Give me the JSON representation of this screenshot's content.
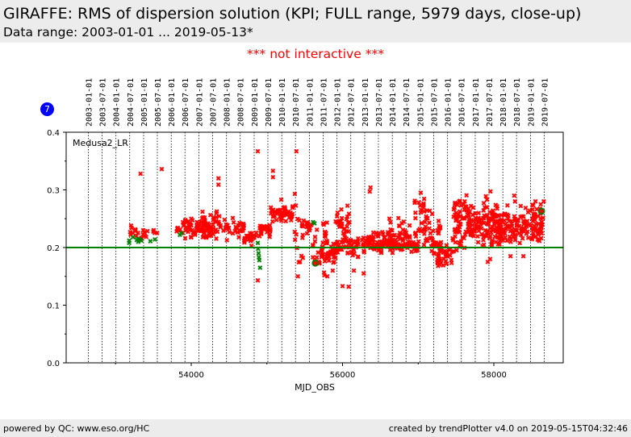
{
  "header": {
    "title": "GIRAFFE: RMS of dispersion solution (KPI; FULL range, 5979 days, close-up)",
    "subtitle": "Data range: 2003-01-01 ... 2019-05-13*"
  },
  "notice": "*** not interactive ***",
  "badge": "7",
  "footer": {
    "left": "powered by QC: www.eso.org/HC",
    "right": "created by trendPlotter v4.0 on 2019-05-15T04:32:46"
  },
  "chart_data": {
    "type": "scatter",
    "title": "GIRAFFE: RMS of dispersion solution (KPI; FULL range, 5979 days, close-up)",
    "xlabel": "MJD_OBS",
    "ylabel": "",
    "annotation": "Medusa2_LR",
    "xlim": [
      52347,
      58917
    ],
    "ylim": [
      0.0,
      0.4
    ],
    "x_ticks": [
      54000,
      56000,
      58000
    ],
    "x_tick_labels": [
      "54000",
      "56000",
      "58000"
    ],
    "x_minor_ticks": [
      53000,
      55000,
      57000
    ],
    "y_ticks": [
      0.0,
      0.1,
      0.2,
      0.3,
      0.4
    ],
    "y_tick_labels": [
      "0.0",
      "0.1",
      "0.2",
      "0.3",
      "0.4"
    ],
    "y_minor_ticks": [
      0.05,
      0.15,
      0.25,
      0.35
    ],
    "reference_line": {
      "y": 0.2,
      "color": "#008000"
    },
    "date_gridlines": [
      {
        "label": "2003-01-01",
        "mjd": 52640
      },
      {
        "label": "2003-07-01",
        "mjd": 52821
      },
      {
        "label": "2004-01-01",
        "mjd": 53005
      },
      {
        "label": "2004-07-01",
        "mjd": 53187
      },
      {
        "label": "2005-01-01",
        "mjd": 53371
      },
      {
        "label": "2005-07-01",
        "mjd": 53552
      },
      {
        "label": "2006-01-01",
        "mjd": 53736
      },
      {
        "label": "2006-07-01",
        "mjd": 53917
      },
      {
        "label": "2007-01-01",
        "mjd": 54101
      },
      {
        "label": "2007-07-01",
        "mjd": 54282
      },
      {
        "label": "2008-01-01",
        "mjd": 54466
      },
      {
        "label": "2008-07-01",
        "mjd": 54648
      },
      {
        "label": "2009-01-01",
        "mjd": 54832
      },
      {
        "label": "2009-07-01",
        "mjd": 55013
      },
      {
        "label": "2010-01-01",
        "mjd": 55197
      },
      {
        "label": "2010-07-01",
        "mjd": 55378
      },
      {
        "label": "2011-01-01",
        "mjd": 55562
      },
      {
        "label": "2011-07-01",
        "mjd": 55743
      },
      {
        "label": "2012-01-01",
        "mjd": 55927
      },
      {
        "label": "2012-07-01",
        "mjd": 56109
      },
      {
        "label": "2013-01-01",
        "mjd": 56293
      },
      {
        "label": "2013-07-01",
        "mjd": 56474
      },
      {
        "label": "2014-01-01",
        "mjd": 56658
      },
      {
        "label": "2014-07-01",
        "mjd": 56839
      },
      {
        "label": "2015-01-01",
        "mjd": 57023
      },
      {
        "label": "2015-07-01",
        "mjd": 57204
      },
      {
        "label": "2016-01-01",
        "mjd": 57388
      },
      {
        "label": "2016-07-01",
        "mjd": 57570
      },
      {
        "label": "2017-01-01",
        "mjd": 57754
      },
      {
        "label": "2017-07-01",
        "mjd": 57935
      },
      {
        "label": "2018-01-01",
        "mjd": 58119
      },
      {
        "label": "2018-07-01",
        "mjd": 58300
      },
      {
        "label": "2019-01-01",
        "mjd": 58484
      },
      {
        "label": "2019-07-01",
        "mjd": 58665
      }
    ],
    "series": [
      {
        "name": "outside_threshold",
        "color": "#ff0000",
        "marker": "x",
        "clusters": [
          {
            "x0": 53180,
            "x1": 53300,
            "ymean": 0.226,
            "yspread": 0.006,
            "n": 10
          },
          {
            "x0": 53300,
            "x1": 53450,
            "ymean": 0.224,
            "yspread": 0.006,
            "n": 8
          },
          {
            "x0": 53450,
            "x1": 53560,
            "ymean": 0.228,
            "yspread": 0.006,
            "n": 4
          },
          {
            "x0": 53800,
            "x1": 53880,
            "ymean": 0.228,
            "yspread": 0.004,
            "n": 6
          },
          {
            "x0": 53880,
            "x1": 54300,
            "ymean": 0.234,
            "yspread": 0.008,
            "n": 70
          },
          {
            "x0": 54050,
            "x1": 54400,
            "ymean": 0.24,
            "yspread": 0.012,
            "n": 40
          },
          {
            "x0": 54400,
            "x1": 54700,
            "ymean": 0.232,
            "yspread": 0.008,
            "n": 35
          },
          {
            "x0": 54700,
            "x1": 54880,
            "ymean": 0.218,
            "yspread": 0.006,
            "n": 25
          },
          {
            "x0": 54900,
            "x1": 55050,
            "ymean": 0.232,
            "yspread": 0.006,
            "n": 25
          },
          {
            "x0": 55050,
            "x1": 55350,
            "ymean": 0.258,
            "yspread": 0.007,
            "n": 50
          },
          {
            "x0": 55350,
            "x1": 55480,
            "ymean": 0.215,
            "yspread": 0.025,
            "n": 14
          },
          {
            "x0": 55450,
            "x1": 55600,
            "ymean": 0.24,
            "yspread": 0.006,
            "n": 14
          },
          {
            "x0": 55600,
            "x1": 55800,
            "ymean": 0.205,
            "yspread": 0.02,
            "n": 28
          },
          {
            "x0": 55700,
            "x1": 55950,
            "ymean": 0.192,
            "yspread": 0.008,
            "n": 40
          },
          {
            "x0": 55900,
            "x1": 56100,
            "ymean": 0.24,
            "yspread": 0.014,
            "n": 35
          },
          {
            "x0": 55950,
            "x1": 56300,
            "ymean": 0.205,
            "yspread": 0.01,
            "n": 45
          },
          {
            "x0": 56300,
            "x1": 56700,
            "ymean": 0.208,
            "yspread": 0.008,
            "n": 80
          },
          {
            "x0": 56600,
            "x1": 56900,
            "ymean": 0.22,
            "yspread": 0.012,
            "n": 45
          },
          {
            "x0": 56700,
            "x1": 57000,
            "ymean": 0.2,
            "yspread": 0.004,
            "n": 40
          },
          {
            "x0": 56950,
            "x1": 57100,
            "ymean": 0.245,
            "yspread": 0.025,
            "n": 30
          },
          {
            "x0": 57100,
            "x1": 57300,
            "ymean": 0.215,
            "yspread": 0.022,
            "n": 45
          },
          {
            "x0": 57250,
            "x1": 57450,
            "ymean": 0.185,
            "yspread": 0.012,
            "n": 35
          },
          {
            "x0": 57450,
            "x1": 57650,
            "ymean": 0.24,
            "yspread": 0.025,
            "n": 60
          },
          {
            "x0": 57650,
            "x1": 57850,
            "ymean": 0.24,
            "yspread": 0.015,
            "n": 55
          },
          {
            "x0": 57850,
            "x1": 58050,
            "ymean": 0.24,
            "yspread": 0.022,
            "n": 70
          },
          {
            "x0": 58050,
            "x1": 58300,
            "ymean": 0.235,
            "yspread": 0.015,
            "n": 70
          },
          {
            "x0": 58300,
            "x1": 58650,
            "ymean": 0.24,
            "yspread": 0.015,
            "n": 85
          }
        ],
        "outliers": [
          [
            53330,
            0.328
          ],
          [
            53610,
            0.336
          ],
          [
            54360,
            0.32
          ],
          [
            54360,
            0.309
          ],
          [
            54880,
            0.367
          ],
          [
            54880,
            0.143
          ],
          [
            55080,
            0.333
          ],
          [
            55080,
            0.322
          ],
          [
            55390,
            0.367
          ],
          [
            55410,
            0.15
          ],
          [
            55800,
            0.15
          ],
          [
            55760,
            0.152
          ],
          [
            56000,
            0.133
          ],
          [
            56080,
            0.132
          ],
          [
            56370,
            0.304
          ],
          [
            56360,
            0.297
          ],
          [
            56280,
            0.155
          ],
          [
            55370,
            0.293
          ],
          [
            55190,
            0.283
          ],
          [
            56620,
            0.25
          ],
          [
            55870,
            0.16
          ],
          [
            55890,
            0.175
          ],
          [
            56150,
            0.16
          ],
          [
            57600,
            0.275
          ],
          [
            57910,
            0.283
          ],
          [
            58270,
            0.29
          ],
          [
            58280,
            0.28
          ],
          [
            58550,
            0.28
          ],
          [
            58660,
            0.28
          ],
          [
            58620,
            0.275
          ],
          [
            57950,
            0.18
          ],
          [
            57920,
            0.175
          ],
          [
            58220,
            0.185
          ],
          [
            58390,
            0.185
          ]
        ]
      },
      {
        "name": "within_threshold",
        "color": "#008000",
        "marker": "x",
        "points": [
          [
            53180,
            0.208
          ],
          [
            53180,
            0.212
          ],
          [
            53230,
            0.218
          ],
          [
            53280,
            0.213
          ],
          [
            53300,
            0.21
          ],
          [
            53320,
            0.214
          ],
          [
            53340,
            0.212
          ],
          [
            53300,
            0.215
          ],
          [
            53460,
            0.211
          ],
          [
            53520,
            0.214
          ],
          [
            53850,
            0.222
          ],
          [
            53870,
            0.225
          ],
          [
            54880,
            0.208
          ],
          [
            54885,
            0.198
          ],
          [
            54890,
            0.19
          ],
          [
            54895,
            0.183
          ],
          [
            54900,
            0.178
          ],
          [
            54910,
            0.165
          ],
          [
            55610,
            0.244
          ],
          [
            55630,
            0.242
          ]
        ]
      }
    ],
    "highlight_points": [
      {
        "x": 55640,
        "y": 0.173,
        "fill": "#ff0000",
        "edge": "#008000"
      },
      {
        "x": 58630,
        "y": 0.263,
        "fill": "#ff0000",
        "edge": "#008000"
      }
    ]
  }
}
